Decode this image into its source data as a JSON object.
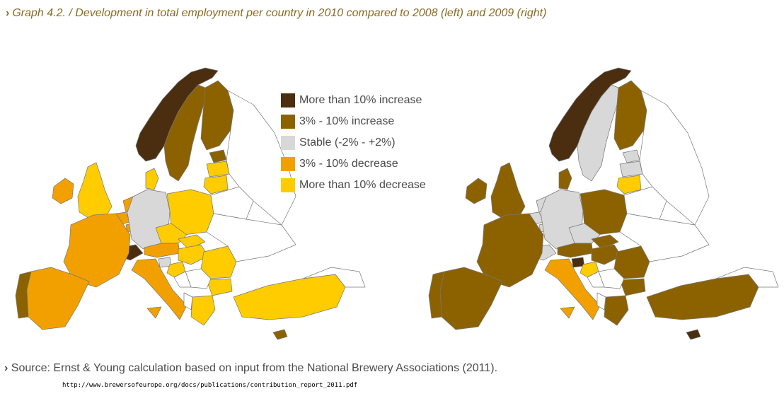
{
  "title": {
    "chevron": "›",
    "text": "Graph 4.2. / Development in total employment per country in 2010 compared to 2008 (left) and 2009 (right)"
  },
  "colors": {
    "more_than_10_increase": "#4a2e0f",
    "3_10_increase": "#8c6200",
    "stable": "#d8d8d8",
    "3_10_decrease": "#f2a000",
    "more_than_10_decrease": "#ffcc00",
    "no_data": "#ffffff"
  },
  "legend": [
    {
      "key": "more_than_10_increase",
      "label": "More than 10% increase"
    },
    {
      "key": "3_10_increase",
      "label": "3% - 10% increase"
    },
    {
      "key": "stable",
      "label": "Stable (-2% - +2%)"
    },
    {
      "key": "3_10_decrease",
      "label": "3% - 10% decrease"
    },
    {
      "key": "more_than_10_decrease",
      "label": "More than 10% decrease"
    }
  ],
  "maps": {
    "left": {
      "norway": "more_than_10_increase",
      "sweden": "3_10_increase",
      "finland": "3_10_increase",
      "estonia": "3_10_increase",
      "latvia": "more_than_10_decrease",
      "lithuania": "more_than_10_decrease",
      "denmark": "more_than_10_decrease",
      "uk": "more_than_10_decrease",
      "ireland": "3_10_decrease",
      "netherlands": "3_10_decrease",
      "belgium": "3_10_decrease",
      "luxembourg": "3_10_decrease",
      "germany": "stable",
      "france": "3_10_decrease",
      "switzerland": "more_than_10_increase",
      "austria": "3_10_decrease",
      "czech": "more_than_10_decrease",
      "slovakia": "more_than_10_decrease",
      "hungary": "more_than_10_decrease",
      "poland": "more_than_10_decrease",
      "slovenia": "stable",
      "croatia": "more_than_10_decrease",
      "romania": "more_than_10_decrease",
      "bulgaria": "more_than_10_decrease",
      "greece": "more_than_10_decrease",
      "turkey": "more_than_10_decrease",
      "italy": "3_10_decrease",
      "spain": "3_10_decrease",
      "portugal": "3_10_increase",
      "cyprus": "3_10_increase"
    },
    "right": {
      "norway": "more_than_10_increase",
      "sweden": "stable",
      "finland": "3_10_increase",
      "estonia": "stable",
      "latvia": "stable",
      "lithuania": "more_than_10_decrease",
      "denmark": "3_10_increase",
      "uk": "3_10_increase",
      "ireland": "3_10_increase",
      "netherlands": "stable",
      "belgium": "stable",
      "luxembourg": "stable",
      "germany": "stable",
      "france": "3_10_increase",
      "switzerland": "stable",
      "austria": "3_10_increase",
      "czech": "stable",
      "slovakia": "3_10_increase",
      "hungary": "3_10_increase",
      "poland": "3_10_increase",
      "slovenia": "more_than_10_increase",
      "croatia": "more_than_10_decrease",
      "romania": "3_10_increase",
      "bulgaria": "3_10_increase",
      "greece": "3_10_increase",
      "turkey": "3_10_increase",
      "italy": "3_10_decrease",
      "spain": "3_10_increase",
      "portugal": "3_10_increase",
      "cyprus": "more_than_10_increase"
    }
  },
  "source": {
    "chevron": "›",
    "label": "Source",
    "separator": ":",
    "text": "Ernst & Young calculation based on input from the National Brewery Associations (2011)."
  },
  "url": "http://www.brewersofeurope.org/docs/publications/contribution_report_2011.pdf"
}
